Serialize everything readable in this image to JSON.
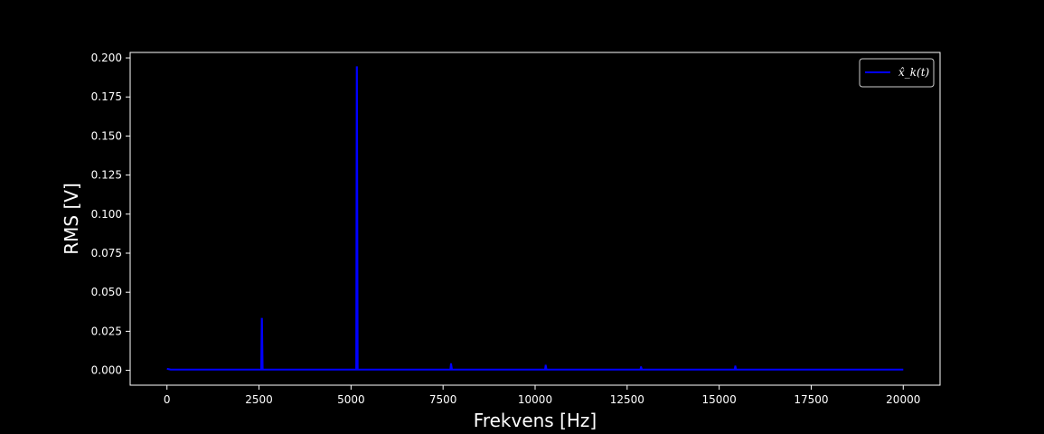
{
  "chart_data": {
    "type": "line",
    "xlabel": "Frekvens [Hz]",
    "ylabel": "RMS [V]",
    "xlim": [
      -1000,
      21000
    ],
    "ylim": [
      -0.0095,
      0.2035
    ],
    "xticks": [
      0,
      2500,
      5000,
      7500,
      10000,
      12500,
      15000,
      17500,
      20000
    ],
    "xtick_labels": [
      "0",
      "2500",
      "5000",
      "7500",
      "10000",
      "12500",
      "15000",
      "17500",
      "20000"
    ],
    "yticks": [
      0.0,
      0.025,
      0.05,
      0.075,
      0.1,
      0.125,
      0.15,
      0.175,
      0.2
    ],
    "ytick_labels": [
      "0.000",
      "0.025",
      "0.050",
      "0.075",
      "0.100",
      "0.125",
      "0.150",
      "0.175",
      "0.200"
    ],
    "grid": false,
    "legend_position": "top-right",
    "background": "#000000",
    "series": [
      {
        "name": "x̂_k(t)",
        "color": "#0000ff",
        "x": [
          0,
          100,
          2560,
          2575,
          2580,
          2600,
          5140,
          5155,
          5160,
          5180,
          7700,
          7715,
          7720,
          7740,
          10270,
          10285,
          10290,
          10310,
          12860,
          12875,
          12880,
          12900,
          15420,
          15435,
          15440,
          15460,
          20000
        ],
        "y": [
          0.001,
          0.0005,
          0.0005,
          0.033,
          0.033,
          0.0005,
          0.0005,
          0.194,
          0.194,
          0.0005,
          0.0005,
          0.004,
          0.004,
          0.0005,
          0.0005,
          0.003,
          0.003,
          0.0005,
          0.0005,
          0.002,
          0.002,
          0.0005,
          0.0005,
          0.0025,
          0.0025,
          0.0005,
          0.0005
        ]
      }
    ]
  }
}
